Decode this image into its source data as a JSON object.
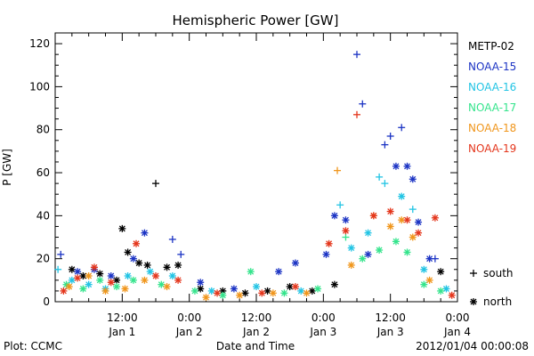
{
  "chart_data": {
    "type": "scatter",
    "title": "Hemispheric Power [GW]",
    "ylabel": "P [GW]",
    "xlabel": "Date and Time",
    "x_start": "2012-01-01 00:00",
    "x_end": "2012-01-04 00:00",
    "ylim": [
      0,
      125
    ],
    "yticks": [
      0,
      20,
      40,
      60,
      80,
      100,
      120
    ],
    "xticks": [
      {
        "x": "2012-01-01 12:00",
        "time": "12:00",
        "date": "Jan 1"
      },
      {
        "x": "2012-01-02 00:00",
        "time": "0:00",
        "date": "Jan 2"
      },
      {
        "x": "2012-01-02 12:00",
        "time": "12:00",
        "date": "Jan 2"
      },
      {
        "x": "2012-01-03 00:00",
        "time": "0:00",
        "date": "Jan 3"
      },
      {
        "x": "2012-01-03 12:00",
        "time": "12:00",
        "date": "Jan 3"
      },
      {
        "x": "2012-01-04 00:00",
        "time": "0:00",
        "date": "Jan 4"
      }
    ],
    "grid": false,
    "legend_position": "right",
    "marker_legend": [
      {
        "symbol": "+",
        "label": "south"
      },
      {
        "symbol": "*",
        "label": "north"
      }
    ],
    "series": [
      {
        "name": "METP-02",
        "color": "#000000",
        "points": [
          {
            "x": "2012-01-01 03:00",
            "y": 15,
            "marker": "*"
          },
          {
            "x": "2012-01-01 05:00",
            "y": 12,
            "marker": "*"
          },
          {
            "x": "2012-01-01 08:00",
            "y": 13,
            "marker": "*"
          },
          {
            "x": "2012-01-01 11:00",
            "y": 10,
            "marker": "*"
          },
          {
            "x": "2012-01-01 12:00",
            "y": 34,
            "marker": "*"
          },
          {
            "x": "2012-01-01 13:00",
            "y": 23,
            "marker": "*"
          },
          {
            "x": "2012-01-01 15:00",
            "y": 18,
            "marker": "*"
          },
          {
            "x": "2012-01-01 16:30",
            "y": 17,
            "marker": "*"
          },
          {
            "x": "2012-01-01 18:00",
            "y": 55,
            "marker": "+"
          },
          {
            "x": "2012-01-01 20:00",
            "y": 16,
            "marker": "*"
          },
          {
            "x": "2012-01-01 22:00",
            "y": 17,
            "marker": "*"
          },
          {
            "x": "2012-01-02 02:00",
            "y": 6,
            "marker": "*"
          },
          {
            "x": "2012-01-02 06:00",
            "y": 5,
            "marker": "*"
          },
          {
            "x": "2012-01-02 10:00",
            "y": 4,
            "marker": "*"
          },
          {
            "x": "2012-01-02 14:00",
            "y": 5,
            "marker": "*"
          },
          {
            "x": "2012-01-02 18:00",
            "y": 7,
            "marker": "*"
          },
          {
            "x": "2012-01-02 22:00",
            "y": 5,
            "marker": "*"
          },
          {
            "x": "2012-01-03 02:00",
            "y": 8,
            "marker": "*"
          },
          {
            "x": "2012-01-03 21:00",
            "y": 14,
            "marker": "*"
          }
        ]
      },
      {
        "name": "NOAA-15",
        "color": "#1c34c4",
        "points": [
          {
            "x": "2012-01-01 01:00",
            "y": 22,
            "marker": "+"
          },
          {
            "x": "2012-01-01 04:00",
            "y": 14,
            "marker": "*"
          },
          {
            "x": "2012-01-01 07:00",
            "y": 15,
            "marker": "*"
          },
          {
            "x": "2012-01-01 10:00",
            "y": 12,
            "marker": "*"
          },
          {
            "x": "2012-01-01 14:00",
            "y": 20,
            "marker": "*"
          },
          {
            "x": "2012-01-01 16:00",
            "y": 32,
            "marker": "*"
          },
          {
            "x": "2012-01-01 21:00",
            "y": 29,
            "marker": "+"
          },
          {
            "x": "2012-01-01 22:30",
            "y": 22,
            "marker": "+"
          },
          {
            "x": "2012-01-02 02:00",
            "y": 9,
            "marker": "*"
          },
          {
            "x": "2012-01-02 08:00",
            "y": 6,
            "marker": "*"
          },
          {
            "x": "2012-01-02 16:00",
            "y": 14,
            "marker": "*"
          },
          {
            "x": "2012-01-02 19:00",
            "y": 18,
            "marker": "*"
          },
          {
            "x": "2012-01-03 00:30",
            "y": 22,
            "marker": "*"
          },
          {
            "x": "2012-01-03 02:00",
            "y": 40,
            "marker": "*"
          },
          {
            "x": "2012-01-03 04:00",
            "y": 38,
            "marker": "*"
          },
          {
            "x": "2012-01-03 06:00",
            "y": 115,
            "marker": "+"
          },
          {
            "x": "2012-01-03 07:00",
            "y": 92,
            "marker": "+"
          },
          {
            "x": "2012-01-03 08:00",
            "y": 22,
            "marker": "*"
          },
          {
            "x": "2012-01-03 11:00",
            "y": 73,
            "marker": "+"
          },
          {
            "x": "2012-01-03 12:00",
            "y": 77,
            "marker": "+"
          },
          {
            "x": "2012-01-03 13:00",
            "y": 63,
            "marker": "*"
          },
          {
            "x": "2012-01-03 14:00",
            "y": 81,
            "marker": "+"
          },
          {
            "x": "2012-01-03 15:00",
            "y": 63,
            "marker": "*"
          },
          {
            "x": "2012-01-03 16:00",
            "y": 57,
            "marker": "*"
          },
          {
            "x": "2012-01-03 17:00",
            "y": 37,
            "marker": "*"
          },
          {
            "x": "2012-01-03 19:00",
            "y": 20,
            "marker": "*"
          },
          {
            "x": "2012-01-03 20:00",
            "y": 20,
            "marker": "+"
          }
        ]
      },
      {
        "name": "NOAA-16",
        "color": "#22c4e4",
        "points": [
          {
            "x": "2012-01-01 00:30",
            "y": 15,
            "marker": "+"
          },
          {
            "x": "2012-01-01 03:00",
            "y": 10,
            "marker": "*"
          },
          {
            "x": "2012-01-01 06:00",
            "y": 8,
            "marker": "*"
          },
          {
            "x": "2012-01-01 09:00",
            "y": 6,
            "marker": "*"
          },
          {
            "x": "2012-01-01 13:00",
            "y": 12,
            "marker": "*"
          },
          {
            "x": "2012-01-01 17:00",
            "y": 14,
            "marker": "*"
          },
          {
            "x": "2012-01-01 21:00",
            "y": 12,
            "marker": "*"
          },
          {
            "x": "2012-01-02 04:00",
            "y": 5,
            "marker": "*"
          },
          {
            "x": "2012-01-02 12:00",
            "y": 7,
            "marker": "*"
          },
          {
            "x": "2012-01-02 20:00",
            "y": 5,
            "marker": "*"
          },
          {
            "x": "2012-01-03 03:00",
            "y": 45,
            "marker": "+"
          },
          {
            "x": "2012-01-03 05:00",
            "y": 25,
            "marker": "*"
          },
          {
            "x": "2012-01-03 08:00",
            "y": 32,
            "marker": "*"
          },
          {
            "x": "2012-01-03 10:00",
            "y": 58,
            "marker": "+"
          },
          {
            "x": "2012-01-03 11:00",
            "y": 55,
            "marker": "+"
          },
          {
            "x": "2012-01-03 14:00",
            "y": 49,
            "marker": "*"
          },
          {
            "x": "2012-01-03 16:00",
            "y": 43,
            "marker": "+"
          },
          {
            "x": "2012-01-03 18:00",
            "y": 15,
            "marker": "*"
          },
          {
            "x": "2012-01-03 22:00",
            "y": 6,
            "marker": "*"
          }
        ]
      },
      {
        "name": "NOAA-17",
        "color": "#34e48c",
        "points": [
          {
            "x": "2012-01-01 02:00",
            "y": 8,
            "marker": "*"
          },
          {
            "x": "2012-01-01 05:00",
            "y": 6,
            "marker": "*"
          },
          {
            "x": "2012-01-01 08:00",
            "y": 10,
            "marker": "*"
          },
          {
            "x": "2012-01-01 11:00",
            "y": 7,
            "marker": "*"
          },
          {
            "x": "2012-01-01 14:00",
            "y": 10,
            "marker": "*"
          },
          {
            "x": "2012-01-01 19:00",
            "y": 8,
            "marker": "*"
          },
          {
            "x": "2012-01-02 01:00",
            "y": 5,
            "marker": "*"
          },
          {
            "x": "2012-01-02 06:00",
            "y": 3,
            "marker": "*"
          },
          {
            "x": "2012-01-02 11:00",
            "y": 14,
            "marker": "*"
          },
          {
            "x": "2012-01-02 17:00",
            "y": 4,
            "marker": "*"
          },
          {
            "x": "2012-01-02 23:00",
            "y": 6,
            "marker": "*"
          },
          {
            "x": "2012-01-03 04:00",
            "y": 30,
            "marker": "+"
          },
          {
            "x": "2012-01-03 07:00",
            "y": 20,
            "marker": "*"
          },
          {
            "x": "2012-01-03 10:00",
            "y": 24,
            "marker": "*"
          },
          {
            "x": "2012-01-03 13:00",
            "y": 28,
            "marker": "*"
          },
          {
            "x": "2012-01-03 15:00",
            "y": 23,
            "marker": "*"
          },
          {
            "x": "2012-01-03 18:00",
            "y": 8,
            "marker": "*"
          },
          {
            "x": "2012-01-03 21:00",
            "y": 5,
            "marker": "*"
          }
        ]
      },
      {
        "name": "NOAA-18",
        "color": "#f0961c",
        "points": [
          {
            "x": "2012-01-01 02:30",
            "y": 7,
            "marker": "*"
          },
          {
            "x": "2012-01-01 06:00",
            "y": 12,
            "marker": "*"
          },
          {
            "x": "2012-01-01 09:00",
            "y": 5,
            "marker": "*"
          },
          {
            "x": "2012-01-01 12:30",
            "y": 6,
            "marker": "*"
          },
          {
            "x": "2012-01-01 16:00",
            "y": 10,
            "marker": "*"
          },
          {
            "x": "2012-01-01 20:00",
            "y": 7,
            "marker": "*"
          },
          {
            "x": "2012-01-02 03:00",
            "y": 2,
            "marker": "*"
          },
          {
            "x": "2012-01-02 09:00",
            "y": 3,
            "marker": "*"
          },
          {
            "x": "2012-01-02 15:00",
            "y": 4,
            "marker": "*"
          },
          {
            "x": "2012-01-02 21:00",
            "y": 4,
            "marker": "*"
          },
          {
            "x": "2012-01-03 02:30",
            "y": 61,
            "marker": "+"
          },
          {
            "x": "2012-01-03 05:00",
            "y": 17,
            "marker": "*"
          },
          {
            "x": "2012-01-03 09:00",
            "y": 40,
            "marker": "*"
          },
          {
            "x": "2012-01-03 12:00",
            "y": 35,
            "marker": "*"
          },
          {
            "x": "2012-01-03 14:00",
            "y": 38,
            "marker": "*"
          },
          {
            "x": "2012-01-03 16:00",
            "y": 30,
            "marker": "*"
          },
          {
            "x": "2012-01-03 19:00",
            "y": 10,
            "marker": "*"
          }
        ]
      },
      {
        "name": "NOAA-19",
        "color": "#e4361c",
        "points": [
          {
            "x": "2012-01-01 01:30",
            "y": 5,
            "marker": "*"
          },
          {
            "x": "2012-01-01 04:00",
            "y": 11,
            "marker": "*"
          },
          {
            "x": "2012-01-01 07:00",
            "y": 16,
            "marker": "*"
          },
          {
            "x": "2012-01-01 10:00",
            "y": 9,
            "marker": "*"
          },
          {
            "x": "2012-01-01 14:30",
            "y": 27,
            "marker": "*"
          },
          {
            "x": "2012-01-01 18:00",
            "y": 12,
            "marker": "*"
          },
          {
            "x": "2012-01-01 22:00",
            "y": 10,
            "marker": "*"
          },
          {
            "x": "2012-01-02 05:00",
            "y": 4,
            "marker": "*"
          },
          {
            "x": "2012-01-02 13:00",
            "y": 4,
            "marker": "*"
          },
          {
            "x": "2012-01-02 19:00",
            "y": 7,
            "marker": "*"
          },
          {
            "x": "2012-01-03 01:00",
            "y": 27,
            "marker": "*"
          },
          {
            "x": "2012-01-03 04:00",
            "y": 33,
            "marker": "*"
          },
          {
            "x": "2012-01-03 06:00",
            "y": 87,
            "marker": "+"
          },
          {
            "x": "2012-01-03 09:00",
            "y": 40,
            "marker": "*"
          },
          {
            "x": "2012-01-03 12:00",
            "y": 42,
            "marker": "*"
          },
          {
            "x": "2012-01-03 15:00",
            "y": 38,
            "marker": "*"
          },
          {
            "x": "2012-01-03 17:00",
            "y": 32,
            "marker": "*"
          },
          {
            "x": "2012-01-03 20:00",
            "y": 39,
            "marker": "*"
          },
          {
            "x": "2012-01-03 23:00",
            "y": 3,
            "marker": "*"
          }
        ]
      }
    ]
  },
  "footer": {
    "plot_label": "Plot: CCMC",
    "timestamp": "2012/01/04 00:00:08"
  }
}
